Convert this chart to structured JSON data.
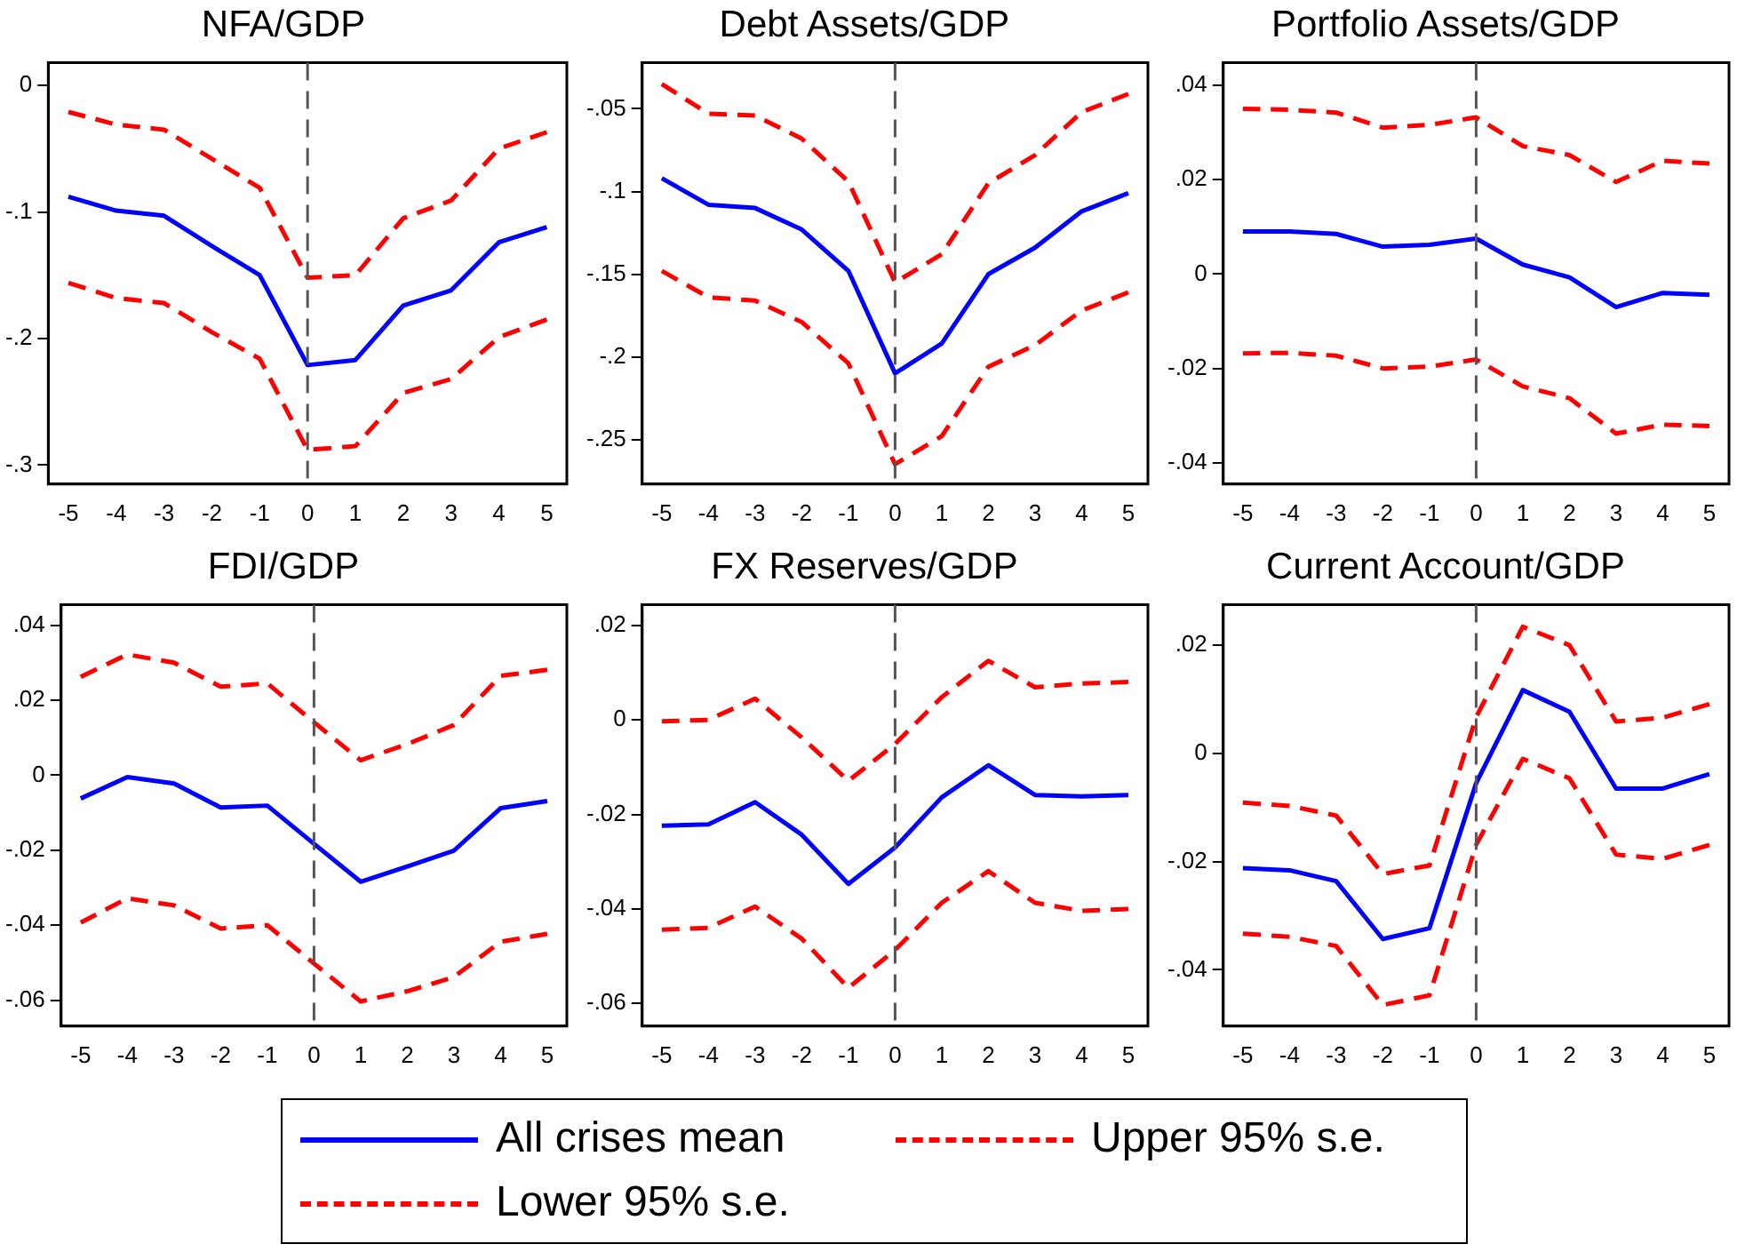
{
  "chart_data": [
    {
      "type": "line",
      "title": "NFA/GDP",
      "x": [
        -5,
        -4,
        -3,
        -2,
        -1,
        0,
        1,
        2,
        3,
        4,
        5
      ],
      "xlim": [
        -5.42,
        5.42
      ],
      "xticks": [
        -5,
        -4,
        -3,
        -2,
        -1,
        0,
        1,
        2,
        3,
        4,
        5
      ],
      "ylim": [
        -0.315,
        0.018
      ],
      "yticks": [
        {
          "value": 0,
          "label": "0"
        },
        {
          "value": -0.1,
          "label": "-.1"
        },
        {
          "value": -0.2,
          "label": "-.2"
        },
        {
          "value": -0.3,
          "label": "-.3"
        }
      ],
      "grid": false,
      "legend": "bottom",
      "ref_lines": [
        {
          "axis": "x",
          "value": 0,
          "color": "#555555",
          "line_style": "dashed"
        }
      ],
      "series": [
        {
          "name": "All crises mean",
          "color": "#0000ff",
          "line_style": "solid",
          "values": [
            -0.088,
            -0.099,
            -0.103,
            -0.127,
            -0.15,
            -0.221,
            -0.217,
            -0.174,
            -0.162,
            -0.124,
            -0.112
          ]
        },
        {
          "name": "Upper 95% s.e.",
          "color": "#ff0000",
          "line_style": "dashed",
          "values": [
            -0.021,
            -0.031,
            -0.035,
            -0.058,
            -0.081,
            -0.152,
            -0.15,
            -0.105,
            -0.091,
            -0.05,
            -0.037
          ]
        },
        {
          "name": "Lower 95% s.e.",
          "color": "#ff0000",
          "line_style": "dashed",
          "values": [
            -0.156,
            -0.168,
            -0.172,
            -0.195,
            -0.216,
            -0.288,
            -0.285,
            -0.243,
            -0.232,
            -0.199,
            -0.185
          ]
        }
      ]
    },
    {
      "type": "line",
      "title": "Debt Assets/GDP",
      "x": [
        -5,
        -4,
        -3,
        -2,
        -1,
        0,
        1,
        2,
        3,
        4,
        5
      ],
      "xlim": [
        -5.42,
        5.42
      ],
      "xticks": [
        -5,
        -4,
        -3,
        -2,
        -1,
        0,
        1,
        2,
        3,
        4,
        5
      ],
      "ylim": [
        -0.277,
        -0.022
      ],
      "yticks": [
        {
          "value": -0.05,
          "label": "-.05"
        },
        {
          "value": -0.1,
          "label": "-.1"
        },
        {
          "value": -0.15,
          "label": "-.15"
        },
        {
          "value": -0.2,
          "label": "-.2"
        },
        {
          "value": -0.25,
          "label": "-.25"
        }
      ],
      "grid": false,
      "ref_lines": [
        {
          "axis": "x",
          "value": 0,
          "color": "#555555",
          "line_style": "dashed"
        }
      ],
      "series": [
        {
          "color": "#0000ff",
          "line_style": "solid",
          "values": [
            -0.092,
            -0.108,
            -0.11,
            -0.123,
            -0.148,
            -0.21,
            -0.192,
            -0.15,
            -0.134,
            -0.112,
            -0.101
          ]
        },
        {
          "color": "#ff0000",
          "line_style": "dashed",
          "values": [
            -0.035,
            -0.053,
            -0.054,
            -0.068,
            -0.094,
            -0.155,
            -0.138,
            -0.095,
            -0.078,
            -0.052,
            -0.041
          ]
        },
        {
          "color": "#ff0000",
          "line_style": "dashed",
          "values": [
            -0.148,
            -0.164,
            -0.166,
            -0.179,
            -0.204,
            -0.265,
            -0.248,
            -0.206,
            -0.193,
            -0.172,
            -0.161
          ]
        }
      ]
    },
    {
      "type": "line",
      "title": "Portfolio Assets/GDP",
      "x": [
        -5,
        -4,
        -3,
        -2,
        -1,
        0,
        1,
        2,
        3,
        4,
        5
      ],
      "xlim": [
        -5.42,
        5.42
      ],
      "xticks": [
        -5,
        -4,
        -3,
        -2,
        -1,
        0,
        1,
        2,
        3,
        4,
        5
      ],
      "ylim": [
        -0.0445,
        0.0448
      ],
      "yticks": [
        {
          "value": 0.04,
          "label": ".04"
        },
        {
          "value": 0.02,
          "label": ".02"
        },
        {
          "value": 0,
          "label": "0"
        },
        {
          "value": -0.02,
          "label": "-.02"
        },
        {
          "value": -0.04,
          "label": "-.04"
        }
      ],
      "grid": false,
      "ref_lines": [
        {
          "axis": "x",
          "value": 0,
          "color": "#555555",
          "line_style": "dashed"
        }
      ],
      "series": [
        {
          "color": "#0000ff",
          "line_style": "solid",
          "values": [
            0.009,
            0.009,
            0.0085,
            0.0058,
            0.0062,
            0.0075,
            0.002,
            -0.0007,
            -0.007,
            -0.004,
            -0.0044
          ]
        },
        {
          "color": "#ff0000",
          "line_style": "dashed",
          "values": [
            0.035,
            0.0348,
            0.0342,
            0.031,
            0.0316,
            0.0332,
            0.0271,
            0.0252,
            0.0195,
            0.024,
            0.0234
          ]
        },
        {
          "color": "#ff0000",
          "line_style": "dashed",
          "values": [
            -0.0168,
            -0.0167,
            -0.0173,
            -0.02,
            -0.0196,
            -0.0181,
            -0.0238,
            -0.0263,
            -0.0338,
            -0.0319,
            -0.0322
          ]
        }
      ]
    },
    {
      "type": "line",
      "title": "FDI/GDP",
      "x": [
        -5,
        -4,
        -3,
        -2,
        -1,
        0,
        1,
        2,
        3,
        4,
        5
      ],
      "xlim": [
        -5.42,
        5.42
      ],
      "xticks": [
        -5,
        -4,
        -3,
        -2,
        -1,
        0,
        1,
        2,
        3,
        4,
        5
      ],
      "ylim": [
        -0.0669,
        0.0455
      ],
      "yticks": [
        {
          "value": 0.04,
          "label": ".04"
        },
        {
          "value": 0.02,
          "label": ".02"
        },
        {
          "value": 0,
          "label": "0"
        },
        {
          "value": -0.02,
          "label": "-.02"
        },
        {
          "value": -0.04,
          "label": "-.04"
        },
        {
          "value": -0.06,
          "label": "-.06"
        }
      ],
      "grid": false,
      "ref_lines": [
        {
          "axis": "x",
          "value": 0,
          "color": "#555555",
          "line_style": "dashed"
        }
      ],
      "series": [
        {
          "color": "#0000ff",
          "line_style": "solid",
          "values": [
            -0.0062,
            -0.0005,
            -0.0022,
            -0.0086,
            -0.0081,
            -0.0183,
            -0.0284,
            -0.0243,
            -0.0201,
            -0.0088,
            -0.0069
          ]
        },
        {
          "color": "#ff0000",
          "line_style": "dashed",
          "values": [
            0.0262,
            0.0322,
            0.03,
            0.0236,
            0.0245,
            0.0141,
            0.004,
            0.0083,
            0.0134,
            0.0265,
            0.0281
          ]
        },
        {
          "color": "#ff0000",
          "line_style": "dashed",
          "values": [
            -0.0393,
            -0.0328,
            -0.0347,
            -0.0409,
            -0.04,
            -0.0502,
            -0.0603,
            -0.0576,
            -0.0538,
            -0.0444,
            -0.0423
          ]
        }
      ]
    },
    {
      "type": "line",
      "title": "FX Reserves/GDP",
      "x": [
        -5,
        -4,
        -3,
        -2,
        -1,
        0,
        1,
        2,
        3,
        4,
        5
      ],
      "xlim": [
        -5.42,
        5.42
      ],
      "xticks": [
        -5,
        -4,
        -3,
        -2,
        -1,
        0,
        1,
        2,
        3,
        4,
        5
      ],
      "ylim": [
        -0.0648,
        0.0244
      ],
      "yticks": [
        {
          "value": 0.02,
          "label": ".02"
        },
        {
          "value": 0,
          "label": "0"
        },
        {
          "value": -0.02,
          "label": "-.02"
        },
        {
          "value": -0.04,
          "label": "-.04"
        },
        {
          "value": -0.06,
          "label": "-.06"
        }
      ],
      "grid": false,
      "ref_lines": [
        {
          "axis": "x",
          "value": 0,
          "color": "#555555",
          "line_style": "dashed"
        }
      ],
      "series": [
        {
          "color": "#0000ff",
          "line_style": "solid",
          "values": [
            -0.0224,
            -0.0221,
            -0.0174,
            -0.0243,
            -0.0347,
            -0.027,
            -0.0164,
            -0.0096,
            -0.0159,
            -0.0162,
            -0.0159
          ]
        },
        {
          "color": "#ff0000",
          "line_style": "dashed",
          "values": [
            -0.0003,
            0,
            0.0045,
            -0.0037,
            -0.0129,
            -0.0051,
            0.0048,
            0.0125,
            0.0069,
            0.0077,
            0.008
          ]
        },
        {
          "color": "#ff0000",
          "line_style": "dashed",
          "values": [
            -0.0444,
            -0.044,
            -0.0395,
            -0.0463,
            -0.0567,
            -0.0487,
            -0.0387,
            -0.032,
            -0.0387,
            -0.0404,
            -0.04
          ]
        }
      ]
    },
    {
      "type": "line",
      "title": "Current Account/GDP",
      "x": [
        -5,
        -4,
        -3,
        -2,
        -1,
        0,
        1,
        2,
        3,
        4,
        5
      ],
      "xlim": [
        -5.42,
        5.42
      ],
      "xticks": [
        -5,
        -4,
        -3,
        -2,
        -1,
        0,
        1,
        2,
        3,
        4,
        5
      ],
      "ylim": [
        -0.0504,
        0.0275
      ],
      "yticks": [
        {
          "value": 0.02,
          "label": ".02"
        },
        {
          "value": 0,
          "label": "0"
        },
        {
          "value": -0.02,
          "label": "-.02"
        },
        {
          "value": -0.04,
          "label": "-.04"
        }
      ],
      "grid": false,
      "ref_lines": [
        {
          "axis": "x",
          "value": 0,
          "color": "#555555",
          "line_style": "dashed"
        }
      ],
      "series": [
        {
          "color": "#0000ff",
          "line_style": "solid",
          "values": [
            -0.0212,
            -0.0216,
            -0.0236,
            -0.0343,
            -0.0323,
            -0.0055,
            0.0117,
            0.0077,
            -0.0065,
            -0.0065,
            -0.0038
          ]
        },
        {
          "color": "#ff0000",
          "line_style": "dashed",
          "values": [
            -0.0091,
            -0.0097,
            -0.0115,
            -0.0223,
            -0.0207,
            0.0067,
            0.0234,
            0.02,
            0.0059,
            0.0066,
            0.0091
          ]
        },
        {
          "color": "#ff0000",
          "line_style": "dashed",
          "values": [
            -0.0333,
            -0.0339,
            -0.0356,
            -0.0465,
            -0.0447,
            -0.0169,
            -0.001,
            -0.0046,
            -0.0187,
            -0.0195,
            -0.0169
          ]
        }
      ]
    }
  ]
}
